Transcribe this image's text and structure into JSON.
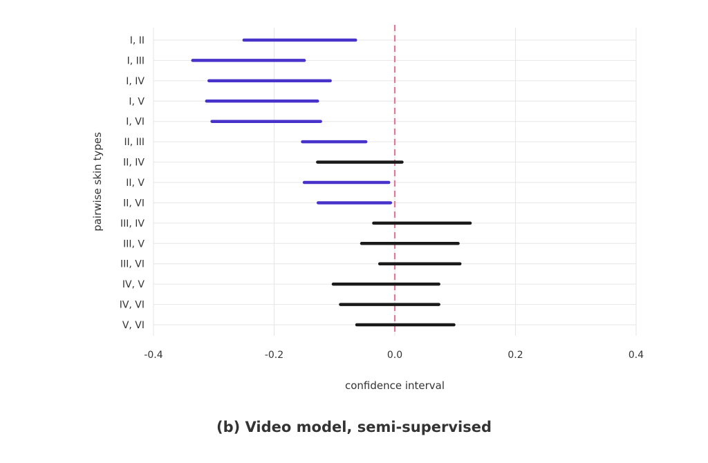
{
  "caption": "(b) Video model, semi-supervised",
  "colors": {
    "significant": "#4733c9",
    "not_significant": "#1a1a1a",
    "reference_line": "#e07896",
    "grid": "#e6e6e6"
  },
  "chart_data": {
    "type": "interval",
    "orientation": "horizontal",
    "xlabel": "confidence interval",
    "ylabel": "pairwise skin types",
    "xlim": [
      -0.4,
      0.4
    ],
    "xticks": [
      "-0.4",
      "-0.2",
      "0.0",
      "0.2",
      "0.4"
    ],
    "xtick_values": [
      -0.4,
      -0.2,
      0.0,
      0.2,
      0.4
    ],
    "reference_line": {
      "x": 0.0,
      "style": "dashed"
    },
    "grid": true,
    "categories": [
      "I, II",
      "I, III",
      "I, IV",
      "I, V",
      "I, VI",
      "II, III",
      "II, IV",
      "II, V",
      "II, VI",
      "III, IV",
      "III, V",
      "III, VI",
      "IV, V",
      "IV, VI",
      "V, VI"
    ],
    "intervals": [
      {
        "low": -0.25,
        "high": -0.065,
        "significant": true
      },
      {
        "low": -0.335,
        "high": -0.15,
        "significant": true
      },
      {
        "low": -0.308,
        "high": -0.107,
        "significant": true
      },
      {
        "low": -0.312,
        "high": -0.128,
        "significant": true
      },
      {
        "low": -0.303,
        "high": -0.123,
        "significant": true
      },
      {
        "low": -0.153,
        "high": -0.048,
        "significant": true
      },
      {
        "low": -0.128,
        "high": 0.012,
        "significant": false
      },
      {
        "low": -0.15,
        "high": -0.01,
        "significant": true
      },
      {
        "low": -0.127,
        "high": -0.007,
        "significant": true
      },
      {
        "low": -0.035,
        "high": 0.125,
        "significant": false
      },
      {
        "low": -0.055,
        "high": 0.105,
        "significant": false
      },
      {
        "low": -0.025,
        "high": 0.108,
        "significant": false
      },
      {
        "low": -0.102,
        "high": 0.073,
        "significant": false
      },
      {
        "low": -0.09,
        "high": 0.073,
        "significant": false
      },
      {
        "low": -0.063,
        "high": 0.098,
        "significant": false
      }
    ]
  }
}
